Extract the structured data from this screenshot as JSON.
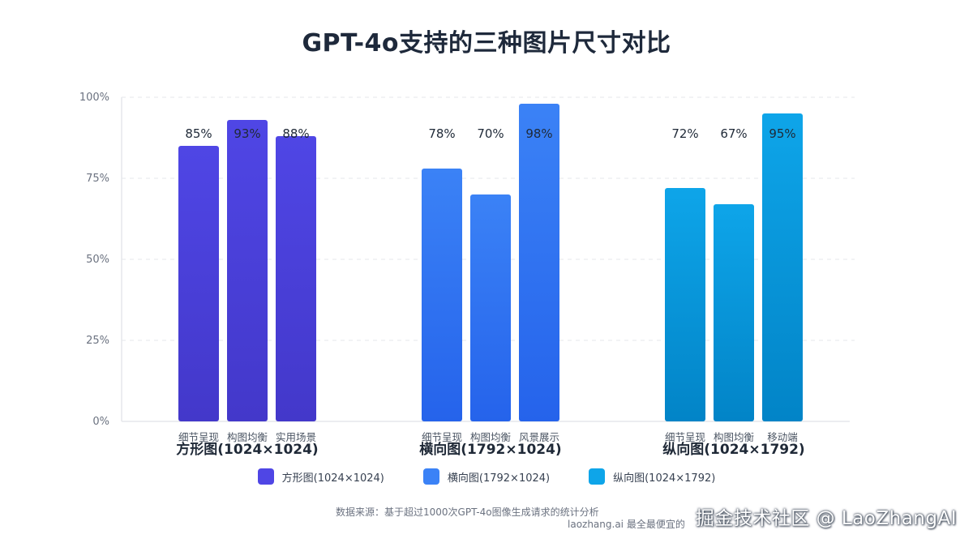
{
  "title": "GPT-4o支持的三种图片尺寸对比",
  "chart_data": {
    "type": "bar",
    "y_ticks": [
      "100%",
      "75%",
      "50%",
      "25%",
      "0%"
    ],
    "ylim": [
      0,
      100
    ],
    "grid": true,
    "groups": [
      {
        "name": "方形图(1024×1024)",
        "color_top": "#4f46e5",
        "color_bottom": "#4338ca",
        "bars": [
          {
            "label": "细节呈现",
            "value": 85,
            "value_label": "85%"
          },
          {
            "label": "构图均衡",
            "value": 93,
            "value_label": "93%"
          },
          {
            "label": "实用场景",
            "value": 88,
            "value_label": "88%"
          }
        ]
      },
      {
        "name": "横向图(1792×1024)",
        "color_top": "#3b82f6",
        "color_bottom": "#2563eb",
        "bars": [
          {
            "label": "细节呈现",
            "value": 78,
            "value_label": "78%"
          },
          {
            "label": "构图均衡",
            "value": 70,
            "value_label": "70%"
          },
          {
            "label": "风景展示",
            "value": 98,
            "value_label": "98%"
          }
        ]
      },
      {
        "name": "纵向图(1024×1792)",
        "color_top": "#0ea5e9",
        "color_bottom": "#0284c7",
        "bars": [
          {
            "label": "细节呈现",
            "value": 72,
            "value_label": "72%"
          },
          {
            "label": "构图均衡",
            "value": 67,
            "value_label": "67%"
          },
          {
            "label": "移动端",
            "value": 95,
            "value_label": "95%"
          }
        ]
      }
    ],
    "legend": [
      {
        "label": "方形图(1024×1024)",
        "color": "#4f46e5"
      },
      {
        "label": "横向图(1792×1024)",
        "color": "#3b82f6"
      },
      {
        "label": "纵向图(1024×1792)",
        "color": "#0ea5e9"
      }
    ],
    "legend_position": "bottom"
  },
  "source_note": "数据来源：基于超过1000次GPT-4o图像生成请求的统计分析",
  "site_note": "laozhang.ai 最全最便宜的",
  "watermark": "掘金技术社区 @ LaoZhangAI"
}
